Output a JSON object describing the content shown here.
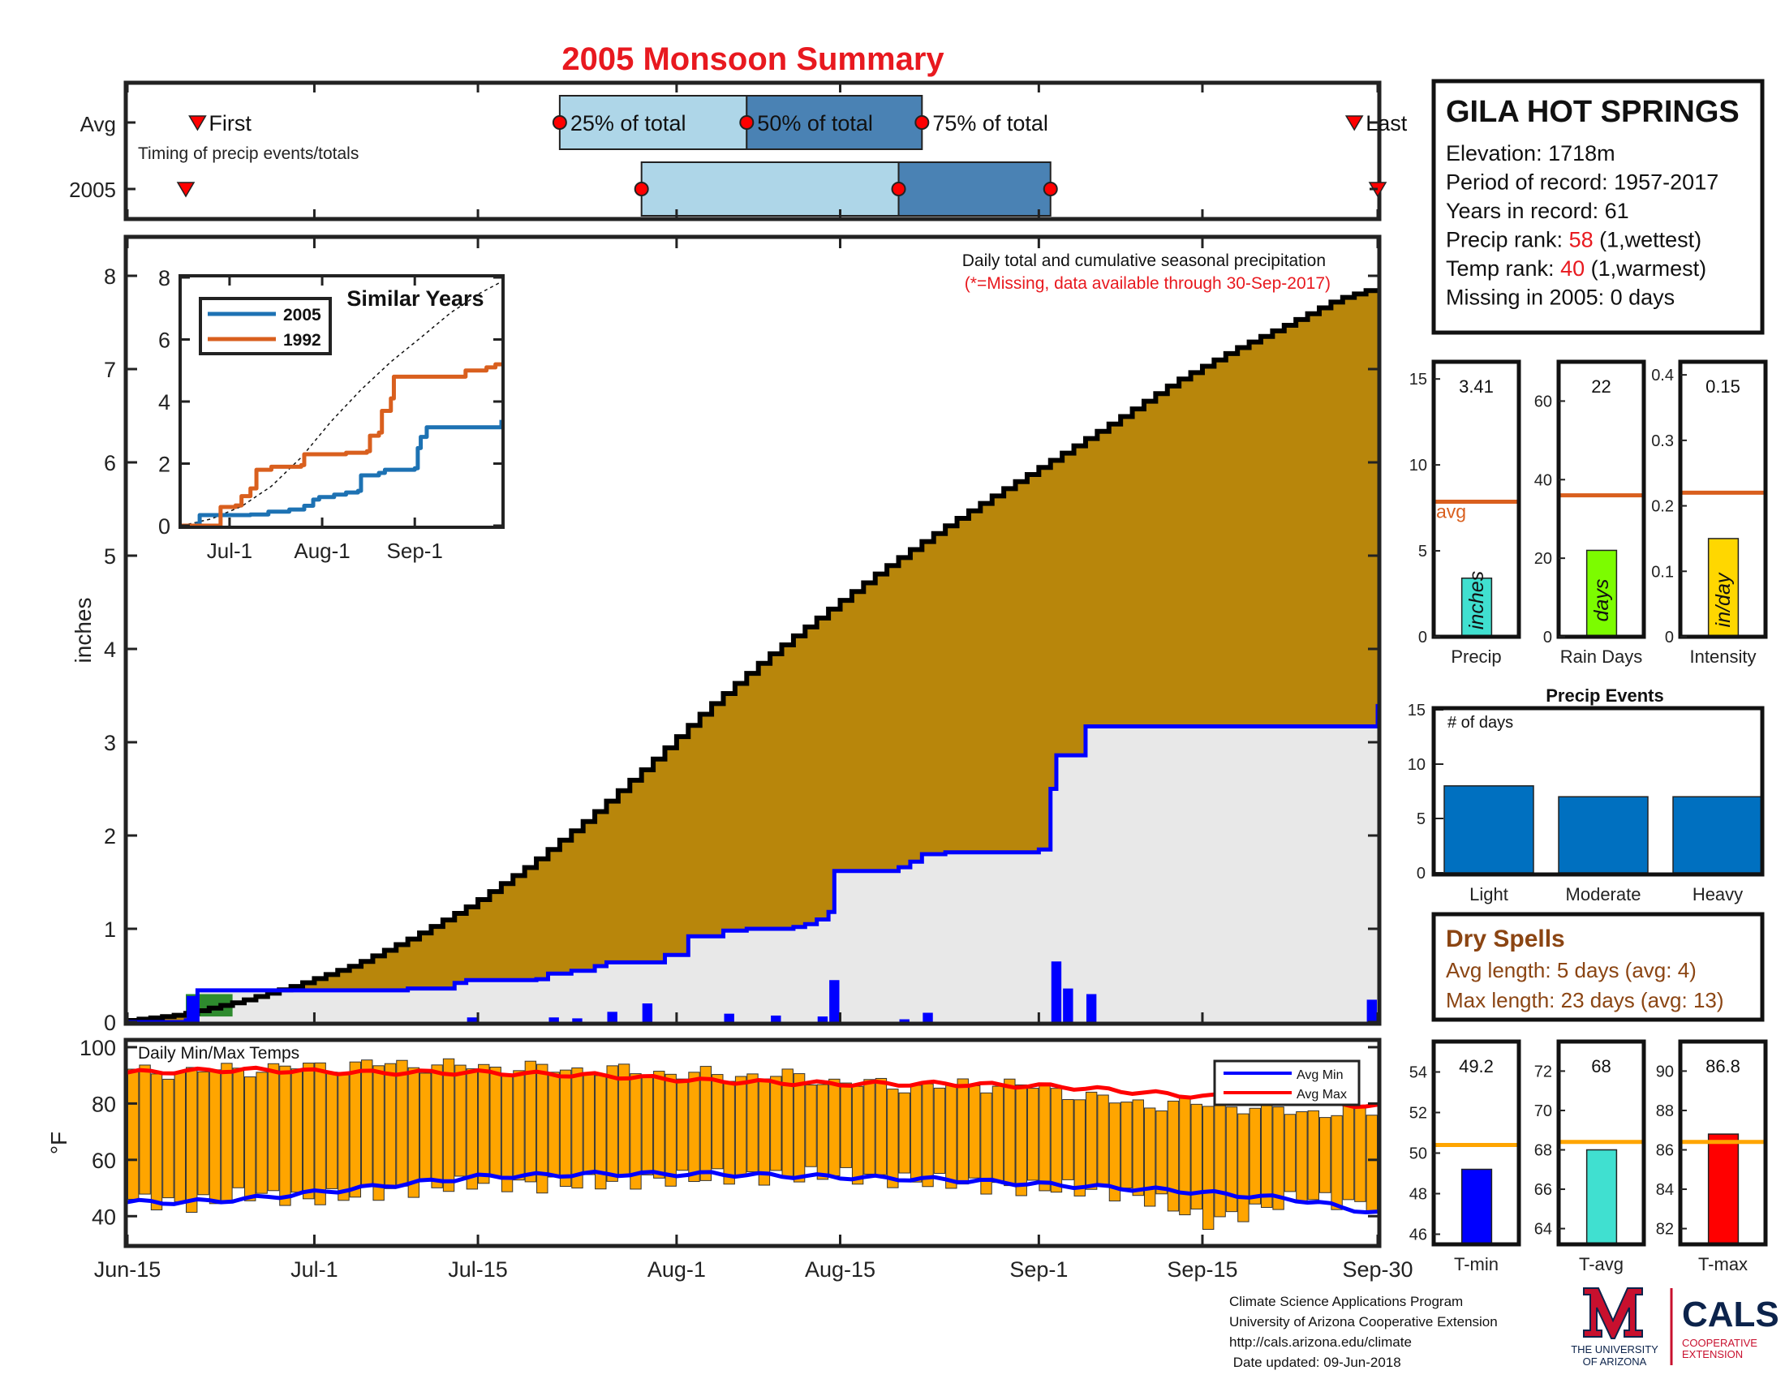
{
  "title": "2005 Monsoon Summary",
  "timing": {
    "row_labels": [
      "Avg",
      "2005"
    ],
    "labels": {
      "first": "First",
      "q25": "25% of total",
      "q50": "50% of total",
      "q75": "75% of total",
      "last": "Last"
    },
    "note": "Timing of precip events/totals",
    "avg": {
      "first": "Jun-21",
      "q25": "Jul-22",
      "q50": "Aug-7",
      "q75": "Aug-22",
      "last": "Sep-28"
    },
    "y2005": {
      "first": "Jun-20",
      "q25": "Jul-29",
      "q50": "Aug-20",
      "q75": "Sep-2",
      "last": "Sep-30"
    },
    "colors": {
      "light": "#aed6e8",
      "dark": "#4a82b4",
      "marker": "#ff0000"
    }
  },
  "station": {
    "name": "GILA HOT SPRINGS",
    "lines": [
      {
        "label": "Elevation: 1718m",
        "value": "",
        "suffix": ""
      },
      {
        "label": "Period of record: 1957-2017",
        "value": "",
        "suffix": ""
      },
      {
        "label": "Years in record: 61",
        "value": "",
        "suffix": ""
      },
      {
        "label": "Precip rank: ",
        "value": "58",
        "suffix": " (1,wettest)"
      },
      {
        "label": "Temp rank: ",
        "value": "40",
        "suffix": " (1,warmest)"
      },
      {
        "label": "Missing in 2005: 0 days",
        "value": "",
        "suffix": ""
      }
    ],
    "rank_color": "#e8191f"
  },
  "chart_data": [
    {
      "id": "main-precip",
      "type": "area",
      "annotation": "Daily total and cumulative seasonal precipitation",
      "annotation2": "(*=Missing, data available through 30-Sep-2017)",
      "ylabel": "inches",
      "ylim": [
        0,
        8.4
      ],
      "yticks": [
        0,
        1,
        2,
        3,
        4,
        5,
        6,
        7,
        8
      ],
      "x_ticks": [
        "Jun-15",
        "Jul-1",
        "Jul-15",
        "Aug-1",
        "Aug-15",
        "Sep-1",
        "Sep-15",
        "Sep-30"
      ],
      "x_tick_days": [
        0,
        16,
        30,
        47,
        61,
        78,
        92,
        107
      ],
      "avg_cumulative": [
        [
          0,
          0.01
        ],
        [
          5,
          0.08
        ],
        [
          10,
          0.22
        ],
        [
          15,
          0.4
        ],
        [
          20,
          0.62
        ],
        [
          25,
          0.92
        ],
        [
          30,
          1.27
        ],
        [
          35,
          1.7
        ],
        [
          40,
          2.2
        ],
        [
          45,
          2.76
        ],
        [
          50,
          3.36
        ],
        [
          55,
          3.9
        ],
        [
          60,
          4.38
        ],
        [
          65,
          4.85
        ],
        [
          70,
          5.28
        ],
        [
          75,
          5.68
        ],
        [
          80,
          6.06
        ],
        [
          85,
          6.45
        ],
        [
          90,
          6.86
        ],
        [
          95,
          7.2
        ],
        [
          100,
          7.5
        ],
        [
          104,
          7.75
        ],
        [
          107,
          7.86
        ]
      ],
      "cumulative_2005": [
        [
          0,
          0
        ],
        [
          5,
          0.02
        ],
        [
          6,
          0.34
        ],
        [
          16,
          0.34
        ],
        [
          23,
          0.34
        ],
        [
          24,
          0.36
        ],
        [
          28,
          0.42
        ],
        [
          29,
          0.45
        ],
        [
          35,
          0.46
        ],
        [
          36,
          0.52
        ],
        [
          38,
          0.55
        ],
        [
          40,
          0.6
        ],
        [
          41,
          0.64
        ],
        [
          45,
          0.64
        ],
        [
          46,
          0.72
        ],
        [
          48,
          0.92
        ],
        [
          51,
          0.98
        ],
        [
          53,
          1.0
        ],
        [
          57,
          1.02
        ],
        [
          58,
          1.05
        ],
        [
          59,
          1.1
        ],
        [
          60,
          1.18
        ],
        [
          60.5,
          1.62
        ],
        [
          66,
          1.66
        ],
        [
          67,
          1.72
        ],
        [
          68,
          1.8
        ],
        [
          70,
          1.82
        ],
        [
          78,
          1.85
        ],
        [
          79,
          2.5
        ],
        [
          79.5,
          2.86
        ],
        [
          81,
          2.86
        ],
        [
          82,
          3.17
        ],
        [
          106,
          3.17
        ],
        [
          107,
          3.41
        ]
      ],
      "daily_2005": [
        [
          5,
          0.28
        ],
        [
          29,
          0.05
        ],
        [
          36,
          0.05
        ],
        [
          38,
          0.04
        ],
        [
          41,
          0.11
        ],
        [
          44,
          0.2
        ],
        [
          51,
          0.09
        ],
        [
          55,
          0.07
        ],
        [
          59,
          0.06
        ],
        [
          60,
          0.45
        ],
        [
          66,
          0.03
        ],
        [
          68,
          0.1
        ],
        [
          79,
          0.65
        ],
        [
          80,
          0.36
        ],
        [
          82,
          0.3
        ],
        [
          106,
          0.24
        ]
      ],
      "colors": {
        "avg_fill": "#b8860b",
        "season_fill": "#e8e8e8",
        "line": "#0000ff",
        "bars": "#0000ff",
        "early_fill": "#2e8b2e",
        "step": "#000000"
      }
    },
    {
      "id": "similar-years",
      "type": "line",
      "title": "Similar Years",
      "ylim": [
        0,
        8
      ],
      "yticks": [
        0,
        2,
        4,
        6,
        8
      ],
      "x_ticks": [
        "Jul-1",
        "Aug-1",
        "Sep-1"
      ],
      "x_tick_days": [
        16,
        47,
        78
      ],
      "series": [
        {
          "name": "2005",
          "color": "#1d72b3",
          "values": [
            [
              0,
              0
            ],
            [
              5,
              0.05
            ],
            [
              6,
              0.34
            ],
            [
              23,
              0.36
            ],
            [
              29,
              0.45
            ],
            [
              36,
              0.52
            ],
            [
              41,
              0.64
            ],
            [
              44,
              0.84
            ],
            [
              46,
              0.92
            ],
            [
              51,
              1.0
            ],
            [
              55,
              1.07
            ],
            [
              59,
              1.12
            ],
            [
              60,
              1.62
            ],
            [
              66,
              1.7
            ],
            [
              68,
              1.8
            ],
            [
              78,
              1.85
            ],
            [
              79,
              2.5
            ],
            [
              80,
              2.86
            ],
            [
              82,
              3.17
            ],
            [
              106,
              3.17
            ],
            [
              107,
              3.41
            ]
          ]
        },
        {
          "name": "1992",
          "color": "#d95f1e",
          "values": [
            [
              0,
              0
            ],
            [
              12,
              0
            ],
            [
              13,
              0.6
            ],
            [
              18,
              0.65
            ],
            [
              20,
              0.95
            ],
            [
              23,
              1.2
            ],
            [
              25,
              1.8
            ],
            [
              28,
              1.8
            ],
            [
              30,
              1.9
            ],
            [
              40,
              1.95
            ],
            [
              41,
              2.3
            ],
            [
              55,
              2.35
            ],
            [
              62,
              2.4
            ],
            [
              63,
              2.9
            ],
            [
              66,
              3.0
            ],
            [
              67,
              3.7
            ],
            [
              70,
              4.1
            ],
            [
              71,
              4.8
            ],
            [
              93,
              4.8
            ],
            [
              95,
              5.0
            ],
            [
              100,
              5.0
            ],
            [
              102,
              5.1
            ],
            [
              104,
              5.1
            ],
            [
              105,
              5.2
            ],
            [
              107,
              5.2
            ]
          ]
        }
      ],
      "avg_line": [
        [
          0,
          0
        ],
        [
          10,
          0.22
        ],
        [
          20,
          0.62
        ],
        [
          30,
          1.27
        ],
        [
          40,
          2.2
        ],
        [
          50,
          3.36
        ],
        [
          60,
          4.38
        ],
        [
          70,
          5.28
        ],
        [
          80,
          6.06
        ],
        [
          90,
          6.86
        ],
        [
          100,
          7.5
        ],
        [
          107,
          7.86
        ]
      ]
    },
    {
      "id": "precip-mini",
      "type": "bar",
      "panels": [
        {
          "category": "Precip",
          "value": 3.41,
          "value_label": "3.41",
          "unit": "inches",
          "avg": 7.86,
          "ylim": [
            0,
            16
          ],
          "yticks": [
            0,
            5,
            10,
            15
          ],
          "color": "#40e0d0",
          "avg_text": "avg"
        },
        {
          "category": "Rain Days",
          "value": 22,
          "value_label": "22",
          "unit": "days",
          "avg": 36,
          "ylim": [
            0,
            70
          ],
          "yticks": [
            0,
            20,
            40,
            60
          ],
          "color": "#7cfc00",
          "avg_text": ""
        },
        {
          "category": "Intensity",
          "value": 0.15,
          "value_label": "0.15",
          "unit": "in/day",
          "avg": 0.22,
          "ylim": [
            0,
            0.42
          ],
          "yticks": [
            0,
            0.1,
            0.2,
            0.3,
            0.4
          ],
          "color": "#ffd700",
          "avg_text": ""
        }
      ],
      "avg_color": "#d95f1e"
    },
    {
      "id": "precip-events",
      "type": "bar",
      "title": "Precip Events",
      "ylabel": "# of days",
      "categories": [
        "Light",
        "Moderate",
        "Heavy"
      ],
      "values": [
        8,
        7,
        7
      ],
      "ylim": [
        0,
        15
      ],
      "yticks": [
        0,
        5,
        10,
        15
      ],
      "color": "#0070c0"
    },
    {
      "id": "daily-temps",
      "type": "bar",
      "title": "Daily Min/Max Temps",
      "ylabel": "°F",
      "ylim": [
        30,
        102
      ],
      "yticks": [
        40,
        60,
        80,
        100
      ],
      "legend": [
        "Avg Min",
        "Avg Max"
      ],
      "colors": {
        "bars": "#ffa500",
        "avg_min": "#0000ff",
        "avg_max": "#ff0000"
      },
      "days": 107,
      "tmax_keys": [
        [
          0,
          91
        ],
        [
          8,
          92
        ],
        [
          15,
          93
        ],
        [
          22,
          94
        ],
        [
          30,
          93
        ],
        [
          38,
          92
        ],
        [
          45,
          91
        ],
        [
          50,
          90
        ],
        [
          55,
          90
        ],
        [
          62,
          87
        ],
        [
          68,
          86
        ],
        [
          75,
          87
        ],
        [
          80,
          84
        ],
        [
          85,
          80
        ],
        [
          90,
          80
        ],
        [
          95,
          79
        ],
        [
          100,
          77
        ],
        [
          107,
          77
        ]
      ],
      "tmin_keys": [
        [
          0,
          46
        ],
        [
          5,
          44
        ],
        [
          10,
          48
        ],
        [
          15,
          46
        ],
        [
          20,
          48
        ],
        [
          25,
          50
        ],
        [
          30,
          52
        ],
        [
          35,
          51
        ],
        [
          40,
          52
        ],
        [
          45,
          53
        ],
        [
          50,
          54
        ],
        [
          55,
          54
        ],
        [
          60,
          55
        ],
        [
          65,
          53
        ],
        [
          70,
          52
        ],
        [
          75,
          50
        ],
        [
          80,
          50
        ],
        [
          85,
          48
        ],
        [
          88,
          45
        ],
        [
          92,
          38
        ],
        [
          96,
          42
        ],
        [
          100,
          47
        ],
        [
          105,
          44
        ],
        [
          107,
          45
        ]
      ],
      "avg_max": [
        [
          0,
          91
        ],
        [
          10,
          92
        ],
        [
          20,
          91
        ],
        [
          30,
          91
        ],
        [
          40,
          90
        ],
        [
          50,
          88
        ],
        [
          60,
          87
        ],
        [
          70,
          87
        ],
        [
          80,
          86
        ],
        [
          90,
          83
        ],
        [
          100,
          81
        ],
        [
          107,
          79
        ]
      ],
      "avg_min": [
        [
          0,
          45
        ],
        [
          5,
          45
        ],
        [
          10,
          46
        ],
        [
          20,
          50
        ],
        [
          30,
          54
        ],
        [
          40,
          55
        ],
        [
          50,
          55
        ],
        [
          60,
          54
        ],
        [
          70,
          53
        ],
        [
          80,
          51
        ],
        [
          90,
          49
        ],
        [
          100,
          46
        ],
        [
          107,
          41
        ]
      ]
    },
    {
      "id": "temp-mini",
      "type": "bar",
      "panels": [
        {
          "category": "T-min",
          "value": 49.2,
          "value_label": "49.2",
          "avg": 50.4,
          "ylim": [
            45.5,
            55.5
          ],
          "yticks": [
            46,
            48,
            50,
            52,
            54
          ],
          "color": "#0000ff"
        },
        {
          "category": "T-avg",
          "value": 68,
          "value_label": "68",
          "avg": 68.4,
          "ylim": [
            63.2,
            73.5
          ],
          "yticks": [
            64,
            66,
            68,
            70,
            72
          ],
          "color": "#40e0d0"
        },
        {
          "category": "T-max",
          "value": 86.8,
          "value_label": "86.8",
          "avg": 86.4,
          "ylim": [
            81.2,
            91.5
          ],
          "yticks": [
            82,
            84,
            86,
            88,
            90
          ],
          "color": "#ff0000"
        }
      ],
      "avg_color": "#ffa500"
    }
  ],
  "dry_spells": {
    "title": "Dry Spells",
    "lines": [
      "Avg length: 5 days (avg: 4)",
      "Max length: 23 days (avg: 13)"
    ],
    "color": "#8b4513"
  },
  "footer": {
    "lines": [
      "Climate Science Applications Program",
      "University of Arizona Cooperative Extension",
      "http://cals.arizona.edu/climate",
      " Date updated: 09-Jun-2018"
    ]
  },
  "logos": {
    "ua_line1": "THE UNIVERSITY",
    "ua_line2": "OF ARIZONA",
    "cals": "CALS",
    "cals_line1": "COOPERATIVE",
    "cals_line2": "EXTENSION",
    "ua_red": "#c8102e",
    "ua_blue": "#0c234b"
  }
}
